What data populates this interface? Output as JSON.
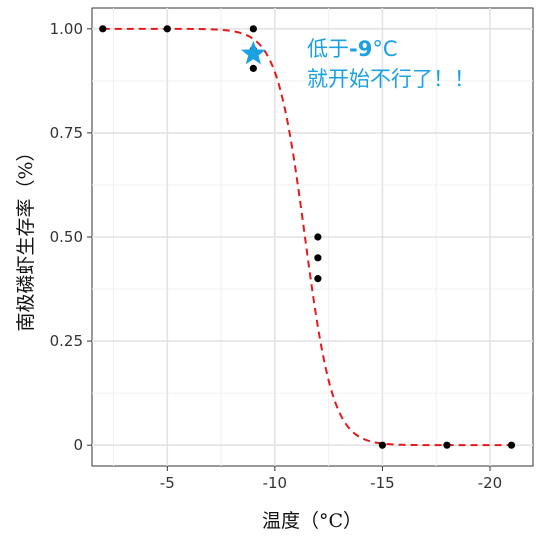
{
  "chart_data": {
    "type": "scatter",
    "xlabel": "温度（°C）",
    "ylabel": "南极磷虾生存率（%）",
    "xlim": [
      -1.5,
      -22
    ],
    "ylim": [
      -0.05,
      1.05
    ],
    "x_reversed": true,
    "x_ticks": [
      -5,
      -10,
      -15,
      -20
    ],
    "x_tick_labels": [
      "-5",
      "-10",
      "-15",
      "-20"
    ],
    "y_ticks": [
      0,
      0.25,
      0.5,
      0.75,
      1.0
    ],
    "y_tick_labels": [
      "0",
      "0.25",
      "0.50",
      "0.75",
      "1.00"
    ],
    "grid": true,
    "series": [
      {
        "kind": "points",
        "color": "#000000",
        "points": [
          {
            "x": -2.0,
            "y": 1.0
          },
          {
            "x": -5.0,
            "y": 1.0
          },
          {
            "x": -9.0,
            "y": 1.0
          },
          {
            "x": -9.0,
            "y": 0.95
          },
          {
            "x": -9.0,
            "y": 0.905
          },
          {
            "x": -12.0,
            "y": 0.5
          },
          {
            "x": -12.0,
            "y": 0.45
          },
          {
            "x": -12.0,
            "y": 0.4
          },
          {
            "x": -15.0,
            "y": 0.0
          },
          {
            "x": -18.0,
            "y": 0.0
          },
          {
            "x": -21.0,
            "y": 0.0
          }
        ]
      },
      {
        "kind": "fitted-curve",
        "color": "#e31a1c",
        "style": "dashed",
        "model": "logistic",
        "midpoint": -11.4,
        "scale": 0.65,
        "x_range": [
          -2.0,
          -21.0
        ]
      }
    ],
    "annotations": [
      {
        "marker": "star",
        "x": -9.0,
        "y": 0.94,
        "color": "#1ba1e2",
        "lines": [
          {
            "segments": [
              {
                "text": "低于",
                "bold": false
              },
              {
                "text": "-9",
                "bold": true
              },
              {
                "text": "°C",
                "bold": false
              }
            ]
          },
          {
            "segments": [
              {
                "text": "就开始不行了！！",
                "bold": false
              }
            ]
          }
        ]
      }
    ]
  }
}
